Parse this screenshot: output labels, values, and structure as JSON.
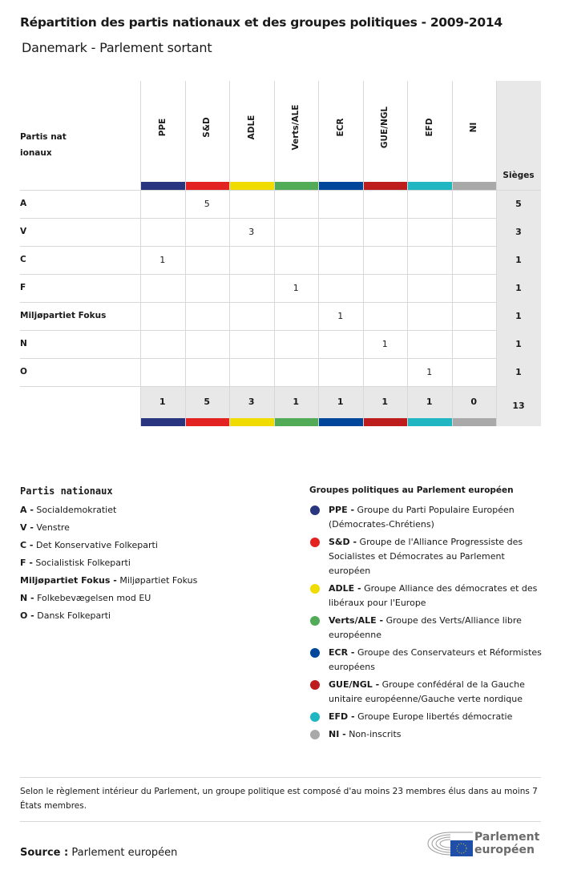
{
  "title": "Répartition des partis nationaux et des groupes politiques - 2009-2014",
  "subtitle": "Danemark - Parlement sortant",
  "table": {
    "party_header": "Partis nationaux",
    "seats_header": "Sièges",
    "groups": [
      {
        "name": "PPE",
        "color": "#2a3580"
      },
      {
        "name": "S&D",
        "color": "#e32222"
      },
      {
        "name": "ADLE",
        "color": "#f0dc00"
      },
      {
        "name": "Verts/ALE",
        "color": "#52ab57"
      },
      {
        "name": "ECR",
        "color": "#00469a"
      },
      {
        "name": "GUE/NGL",
        "color": "#bd1d1d"
      },
      {
        "name": "EFD",
        "color": "#21b7c2"
      },
      {
        "name": "NI",
        "color": "#a9a9a9"
      }
    ],
    "rows": [
      {
        "party": "A",
        "values": [
          "",
          "5",
          "",
          "",
          "",
          "",
          "",
          ""
        ],
        "total": "5"
      },
      {
        "party": "V",
        "values": [
          "",
          "",
          "3",
          "",
          "",
          "",
          "",
          ""
        ],
        "total": "3"
      },
      {
        "party": "C",
        "values": [
          "1",
          "",
          "",
          "",
          "",
          "",
          "",
          ""
        ],
        "total": "1"
      },
      {
        "party": "F",
        "values": [
          "",
          "",
          "",
          "1",
          "",
          "",
          "",
          ""
        ],
        "total": "1"
      },
      {
        "party": "Miljøpartiet Fokus",
        "values": [
          "",
          "",
          "",
          "",
          "1",
          "",
          "",
          ""
        ],
        "total": "1"
      },
      {
        "party": "N",
        "values": [
          "",
          "",
          "",
          "",
          "",
          "1",
          "",
          ""
        ],
        "total": "1"
      },
      {
        "party": "O",
        "values": [
          "",
          "",
          "",
          "",
          "",
          "",
          "1",
          ""
        ],
        "total": "1"
      }
    ],
    "totals": [
      "1",
      "5",
      "3",
      "1",
      "1",
      "1",
      "1",
      "0"
    ],
    "grand_total": "13"
  },
  "legend_parties": {
    "title": "Partis nationaux",
    "items": [
      {
        "code": "A -",
        "name": "Socialdemokratiet"
      },
      {
        "code": "V -",
        "name": "Venstre"
      },
      {
        "code": "C -",
        "name": " Det Konservative Folkeparti"
      },
      {
        "code": "F -",
        "name": "Socialistisk Folkeparti"
      },
      {
        "code": "Miljøpartiet Fokus -",
        "name": "Miljøpartiet Fokus"
      },
      {
        "code": "N -",
        "name": "Folkebevægelsen mod EU"
      },
      {
        "code": "O -",
        "name": "Dansk Folkeparti"
      }
    ]
  },
  "legend_groups": {
    "title": "Groupes politiques au Parlement européen",
    "items": [
      {
        "code": "PPE -",
        "name": "Groupe du Parti Populaire Européen (Démocrates-Chrétiens)",
        "color": "#2a3580"
      },
      {
        "code": "S&D -",
        "name": "Groupe de l'Alliance Progressiste des Socialistes et Démocrates au Parlement européen",
        "color": "#e32222"
      },
      {
        "code": "ADLE -",
        "name": "Groupe Alliance des démocrates et des libéraux pour l'Europe",
        "color": "#f0dc00"
      },
      {
        "code": "Verts/ALE -",
        "name": "Groupe des Verts/Alliance libre européenne",
        "color": "#52ab57"
      },
      {
        "code": "ECR -",
        "name": "Groupe des Conservateurs et Réformistes européens",
        "color": "#00469a"
      },
      {
        "code": "GUE/NGL -",
        "name": "Groupe confédéral de la Gauche unitaire européenne/Gauche verte nordique",
        "color": "#bd1d1d"
      },
      {
        "code": "EFD -",
        "name": "Groupe Europe libertés démocratie",
        "color": "#21b7c2"
      },
      {
        "code": "NI -",
        "name": "Non-inscrits",
        "color": "#a9a9a9"
      }
    ]
  },
  "note": "Selon le règlement intérieur du Parlement, un groupe politique est composé d'au moins 23 membres élus dans au moins 7 États membres.",
  "source": {
    "label": "Source :",
    "value": "Parlement européen"
  },
  "logo": {
    "text": "Parlement européen"
  }
}
